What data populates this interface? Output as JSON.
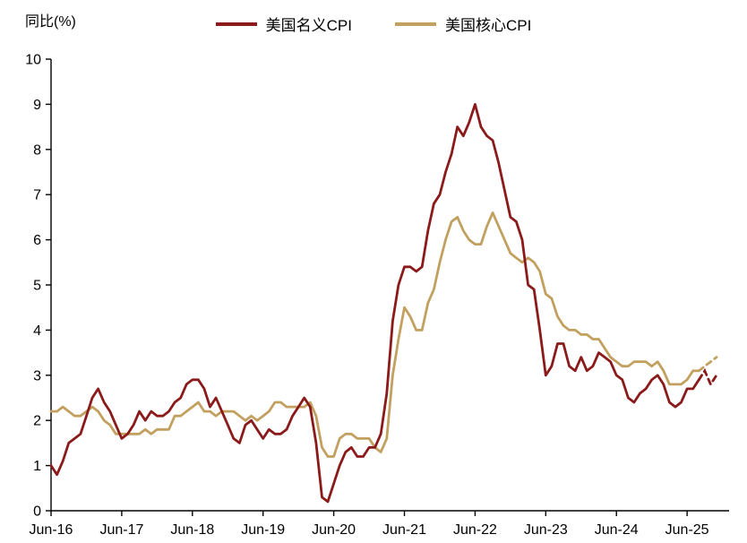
{
  "chart_data": {
    "type": "line",
    "title": "",
    "ylabel": "同比(%)",
    "xlabel": "",
    "ylim": [
      0,
      10
    ],
    "y_tick_step": 1,
    "grid": false,
    "legend_position": "top-center",
    "x_unit": "month",
    "x_start": "Jun-16",
    "x_tick_labels": [
      "Jun-16",
      "Jun-17",
      "Jun-18",
      "Jun-19",
      "Jun-20",
      "Jun-21",
      "Jun-22",
      "Jun-23",
      "Jun-24",
      "Jun-25"
    ],
    "x_tick_indices": [
      0,
      12,
      24,
      36,
      48,
      60,
      72,
      84,
      96,
      108
    ],
    "forecast_start_index": 110,
    "axis_color": "#000000",
    "series": [
      {
        "name": "美国名义CPI",
        "color": "#8B1A1A",
        "values": [
          1.0,
          0.8,
          1.1,
          1.5,
          1.6,
          1.7,
          2.1,
          2.5,
          2.7,
          2.4,
          2.2,
          1.9,
          1.6,
          1.7,
          1.9,
          2.2,
          2.0,
          2.2,
          2.1,
          2.1,
          2.2,
          2.4,
          2.5,
          2.8,
          2.9,
          2.9,
          2.7,
          2.3,
          2.5,
          2.2,
          1.9,
          1.6,
          1.5,
          1.9,
          2.0,
          1.8,
          1.6,
          1.8,
          1.7,
          1.7,
          1.8,
          2.1,
          2.3,
          2.5,
          2.3,
          1.5,
          0.3,
          0.2,
          0.6,
          1.0,
          1.3,
          1.4,
          1.2,
          1.2,
          1.4,
          1.4,
          1.7,
          2.6,
          4.2,
          5.0,
          5.4,
          5.4,
          5.3,
          5.4,
          6.2,
          6.8,
          7.0,
          7.5,
          7.9,
          8.5,
          8.3,
          8.6,
          9.0,
          8.5,
          8.3,
          8.2,
          7.7,
          7.1,
          6.5,
          6.4,
          6.0,
          5.0,
          4.9,
          4.0,
          3.0,
          3.2,
          3.7,
          3.7,
          3.2,
          3.1,
          3.4,
          3.1,
          3.2,
          3.5,
          3.4,
          3.3,
          3.0,
          2.9,
          2.5,
          2.4,
          2.6,
          2.7,
          2.9,
          3.0,
          2.8,
          2.4,
          2.3,
          2.4,
          2.7,
          2.7,
          2.9,
          3.1,
          2.8,
          3.0
        ]
      },
      {
        "name": "美国核心CPI",
        "color": "#C2A05F",
        "values": [
          2.2,
          2.2,
          2.3,
          2.2,
          2.1,
          2.1,
          2.2,
          2.3,
          2.2,
          2.0,
          1.9,
          1.7,
          1.7,
          1.7,
          1.7,
          1.7,
          1.8,
          1.7,
          1.8,
          1.8,
          1.8,
          2.1,
          2.1,
          2.2,
          2.3,
          2.4,
          2.2,
          2.2,
          2.1,
          2.2,
          2.2,
          2.2,
          2.1,
          2.0,
          2.1,
          2.0,
          2.1,
          2.2,
          2.4,
          2.4,
          2.3,
          2.3,
          2.3,
          2.3,
          2.4,
          2.1,
          1.4,
          1.2,
          1.2,
          1.6,
          1.7,
          1.7,
          1.6,
          1.6,
          1.6,
          1.4,
          1.3,
          1.6,
          3.0,
          3.8,
          4.5,
          4.3,
          4.0,
          4.0,
          4.6,
          4.9,
          5.5,
          6.0,
          6.4,
          6.5,
          6.2,
          6.0,
          5.9,
          5.9,
          6.3,
          6.6,
          6.3,
          6.0,
          5.7,
          5.6,
          5.5,
          5.6,
          5.5,
          5.3,
          4.8,
          4.7,
          4.3,
          4.1,
          4.0,
          4.0,
          3.9,
          3.9,
          3.8,
          3.8,
          3.6,
          3.4,
          3.3,
          3.2,
          3.2,
          3.3,
          3.3,
          3.3,
          3.2,
          3.3,
          3.1,
          2.8,
          2.8,
          2.8,
          2.9,
          3.1,
          3.1,
          3.2,
          3.3,
          3.4
        ]
      }
    ]
  }
}
